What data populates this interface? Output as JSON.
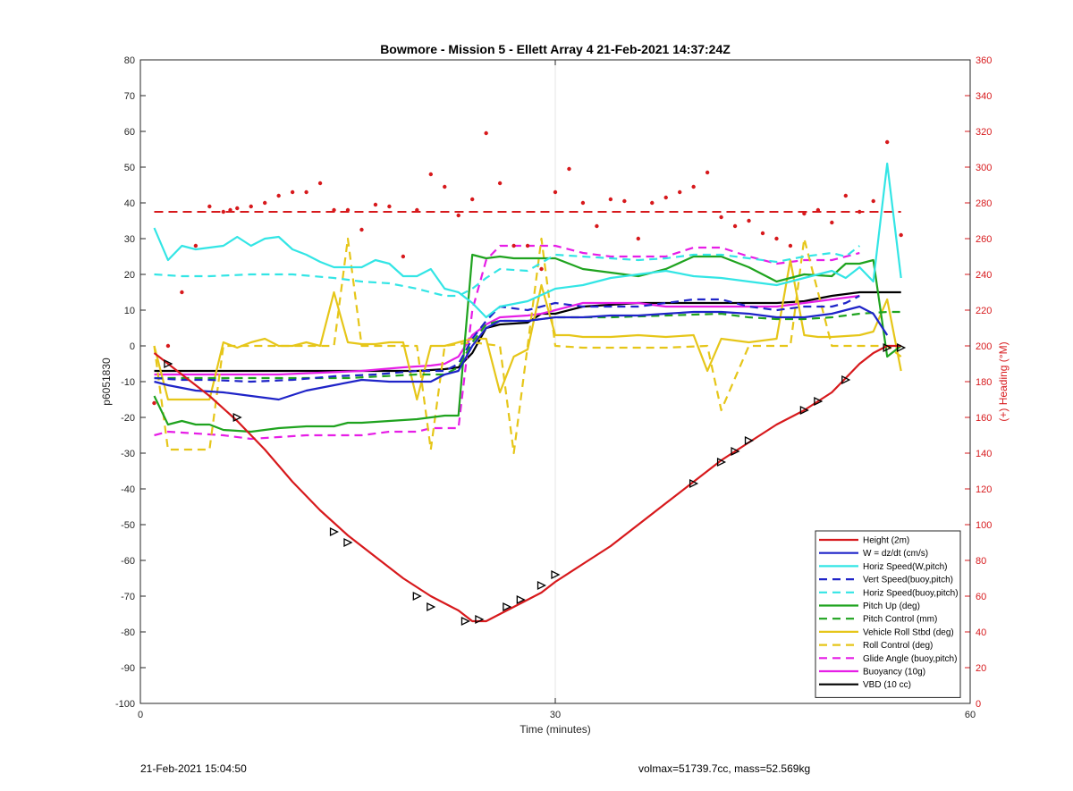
{
  "footer": {
    "timestamp": "21-Feb-2021 15:04:50",
    "stats": "volmax=51739.7cc, mass=52.569kg"
  },
  "chart_data": {
    "type": "line",
    "title": "Bowmore - Mission 5 - Ellett Array 4 21-Feb-2021 14:37:24Z",
    "xlabel": "Time (minutes)",
    "ylabel": "p6051830",
    "y2label": "(+) Heading (°M)",
    "xlim": [
      0,
      60
    ],
    "ylim": [
      -100,
      80
    ],
    "y2lim": [
      0,
      360
    ],
    "xticks": [
      0,
      30,
      60
    ],
    "yticks": [
      -100,
      -90,
      -80,
      -70,
      -60,
      -50,
      -40,
      -30,
      -20,
      -10,
      0,
      10,
      20,
      30,
      40,
      50,
      60,
      70,
      80
    ],
    "y2ticks": [
      0,
      20,
      40,
      60,
      80,
      100,
      120,
      140,
      160,
      180,
      200,
      220,
      240,
      260,
      280,
      300,
      320,
      340,
      360
    ],
    "grid": "x-only",
    "legend_position": "bottom-right",
    "colors": {
      "red": "#d7191c",
      "blue": "#1f24c8",
      "cyan": "#33e5e5",
      "green": "#1fa31f",
      "yellow": "#e6c619",
      "magenta": "#e61ee6",
      "black": "#000000"
    },
    "series": [
      {
        "name": "Height (2m)",
        "color": "red",
        "style": "solid",
        "x": [
          1,
          3,
          5,
          7,
          9,
          11,
          13,
          15,
          17,
          19,
          21,
          23,
          24,
          25,
          26,
          27,
          28,
          29,
          30,
          32,
          34,
          36,
          38,
          40,
          42,
          44,
          46,
          48,
          50,
          51,
          52,
          53,
          54,
          55
        ],
        "y": [
          -2,
          -8,
          -14,
          -21,
          -29,
          -38,
          -46,
          -53,
          -59,
          -65,
          -70,
          -74,
          -77,
          -77,
          -75,
          -73,
          -71,
          -69,
          -66,
          -61,
          -56,
          -50,
          -44,
          -38,
          -32,
          -27,
          -22,
          -18,
          -13,
          -9,
          -5,
          -2,
          0,
          0
        ]
      },
      {
        "name": "W = dz/dt (cm/s)",
        "color": "blue",
        "style": "solid",
        "x": [
          1,
          2,
          4,
          6,
          8,
          10,
          12,
          14,
          16,
          18,
          20,
          21,
          22,
          23,
          24,
          25,
          26,
          28,
          30,
          32,
          34,
          36,
          38,
          40,
          42,
          44,
          46,
          48,
          50,
          51,
          52,
          53,
          54
        ],
        "y": [
          -10,
          -11,
          -12.5,
          -13,
          -14,
          -15,
          -12.5,
          -11,
          -9.5,
          -10,
          -10,
          -10,
          -8,
          -7,
          0,
          5,
          7,
          7,
          8,
          8,
          8.5,
          8.5,
          9,
          9.5,
          9.5,
          9,
          8,
          8,
          9,
          10,
          11,
          9,
          3
        ]
      },
      {
        "name": "Horiz Speed(W,pitch)",
        "color": "cyan",
        "style": "solid",
        "x": [
          1,
          2,
          3,
          4,
          5,
          6,
          7,
          8,
          9,
          10,
          11,
          12,
          13,
          14,
          15,
          16,
          17,
          18,
          19,
          20,
          21,
          22,
          23,
          24,
          25,
          26,
          28,
          30,
          32,
          34,
          36,
          38,
          40,
          42,
          44,
          46,
          48,
          50,
          51,
          52,
          53,
          54,
          55
        ],
        "y": [
          33,
          24,
          28,
          27,
          27.5,
          28,
          30.5,
          28,
          30,
          30.5,
          27,
          25.5,
          23.5,
          22,
          22,
          22,
          24,
          23,
          19.5,
          19.5,
          21.5,
          16,
          15,
          12,
          8,
          11,
          12.5,
          16,
          17,
          19,
          20,
          21,
          19.5,
          19,
          18,
          17,
          19,
          21,
          19,
          22,
          18,
          51,
          19
        ]
      },
      {
        "name": "Vert Speed(buoy,pitch)",
        "color": "blue",
        "style": "dashed",
        "x": [
          1,
          3,
          5,
          8,
          11,
          14,
          17,
          20,
          22,
          23,
          24,
          25,
          26,
          28,
          30,
          32,
          34,
          36,
          38,
          40,
          42,
          44,
          46,
          48,
          50,
          51,
          52
        ],
        "y": [
          -9,
          -9.5,
          -9.5,
          -10,
          -9.5,
          -8.5,
          -8,
          -7,
          -7,
          -5,
          2,
          7,
          11,
          10,
          12,
          11,
          11,
          11,
          12,
          13,
          13,
          11,
          10,
          11,
          11,
          12,
          14
        ]
      },
      {
        "name": "Horiz Speed(buoy,pitch)",
        "color": "cyan",
        "style": "dashed",
        "x": [
          1,
          3,
          5,
          8,
          11,
          14,
          16,
          18,
          20,
          22,
          23,
          24,
          25,
          26,
          28,
          30,
          32,
          34,
          36,
          38,
          40,
          42,
          44,
          46,
          48,
          50,
          51,
          52
        ],
        "y": [
          20,
          19.5,
          19.5,
          20,
          20,
          19,
          18,
          17.5,
          16,
          14,
          14,
          16,
          19,
          21.5,
          21,
          25.5,
          25,
          24.5,
          24,
          24.5,
          25.5,
          25.5,
          24.5,
          23.5,
          25,
          26,
          25,
          28
        ]
      },
      {
        "name": "Pitch Up (deg)",
        "color": "green",
        "style": "solid",
        "x": [
          1,
          2,
          3,
          4,
          5,
          6,
          8,
          10,
          12,
          14,
          15,
          16,
          18,
          20,
          22,
          23,
          24,
          25,
          26,
          27,
          28,
          30,
          31,
          32,
          34,
          36,
          38,
          40,
          42,
          44,
          46,
          48,
          50,
          51,
          52,
          53,
          54,
          55
        ],
        "y": [
          -14,
          -22,
          -21,
          -22,
          -22,
          -23.5,
          -24,
          -23,
          -22.5,
          -22.5,
          -21.5,
          -21.5,
          -21,
          -20.5,
          -19.5,
          -19.5,
          25.5,
          24.5,
          25,
          24.5,
          24.5,
          24.5,
          23,
          21.5,
          20.5,
          19.5,
          21.5,
          25,
          25,
          22,
          18,
          20,
          19.5,
          23,
          23,
          24,
          -3,
          0
        ]
      },
      {
        "name": "Pitch Control (mm)",
        "color": "green",
        "style": "dashed",
        "x": [
          1,
          5,
          10,
          15,
          20,
          22,
          23,
          24,
          25,
          26,
          28,
          30,
          34,
          38,
          42,
          44,
          46,
          48,
          50,
          52,
          54,
          55
        ],
        "y": [
          -9,
          -9,
          -9,
          -9,
          -8,
          -8,
          -6,
          1,
          6,
          7,
          7,
          8,
          8,
          8.5,
          9,
          8,
          7.5,
          7.5,
          8,
          9,
          9.5,
          9.5
        ]
      },
      {
        "name": "Vehicle Roll Stbd (deg)",
        "color": "yellow",
        "style": "solid",
        "x": [
          1,
          2,
          4,
          5,
          6,
          7,
          8,
          9,
          10,
          11,
          12,
          13,
          14,
          15,
          16,
          17,
          18,
          19,
          20,
          21,
          22,
          23,
          24,
          25,
          26,
          27,
          28,
          29,
          30,
          31,
          32,
          34,
          36,
          38,
          40,
          41,
          42,
          44,
          46,
          47,
          48,
          49,
          50,
          52,
          53,
          54,
          55
        ],
        "y": [
          0,
          -15,
          -15,
          -15,
          1,
          -0.5,
          1,
          2,
          0,
          0,
          1,
          0,
          15,
          1,
          0.5,
          0.5,
          1,
          1,
          -15,
          0,
          0,
          1,
          2,
          2,
          -13,
          -3,
          -1,
          17,
          3,
          3,
          2.5,
          2.5,
          3,
          2.5,
          3,
          -7,
          2,
          1,
          2,
          24,
          3,
          2.5,
          2.5,
          3,
          4,
          13,
          -7
        ]
      },
      {
        "name": "Roll Control (deg)",
        "color": "yellow",
        "style": "dashed",
        "x": [
          1,
          2,
          4,
          5,
          6,
          8,
          10,
          12,
          13,
          14,
          15,
          16,
          18,
          20,
          21,
          22,
          24,
          26,
          27,
          28,
          29,
          30,
          32,
          35,
          38,
          41,
          42,
          44,
          46,
          47,
          48,
          50,
          52,
          54,
          55
        ],
        "y": [
          0,
          -29,
          -29,
          -29,
          0,
          0,
          0,
          0,
          0,
          0,
          30,
          0,
          0,
          0,
          -29,
          0,
          1,
          0,
          -30,
          0,
          30,
          0,
          -0.5,
          -0.5,
          -0.5,
          0,
          -18,
          0,
          0,
          0,
          30,
          0,
          0,
          0,
          -3
        ]
      },
      {
        "name": "Glide Angle (buoy,pitch)",
        "color": "magenta",
        "style": "dashed",
        "x": [
          1,
          2,
          4,
          6,
          8,
          10,
          12,
          14,
          16,
          18,
          20,
          21,
          22,
          23,
          24,
          25,
          26,
          28,
          30,
          32,
          34,
          36,
          38,
          40,
          42,
          44,
          46,
          48,
          50,
          52
        ],
        "y": [
          -25,
          -24,
          -24.5,
          -25,
          -26,
          -25.5,
          -25,
          -25,
          -25,
          -24,
          -24,
          -23,
          -23,
          -23,
          10,
          24,
          28,
          28,
          28,
          26,
          25,
          25,
          25,
          27.5,
          27.5,
          25,
          23,
          24,
          24,
          26
        ]
      },
      {
        "name": "Buoyancy (10g)",
        "color": "magenta",
        "style": "solid",
        "x": [
          1,
          4,
          7,
          10,
          13,
          16,
          19,
          21,
          22,
          23,
          24,
          25,
          26,
          28,
          29,
          30,
          32,
          34,
          36,
          38,
          40,
          42,
          44,
          46,
          48,
          50,
          51,
          52
        ],
        "y": [
          -8,
          -8,
          -8,
          -8,
          -7.5,
          -7,
          -6,
          -5.5,
          -5,
          -3,
          3,
          6,
          8,
          8.5,
          9,
          10,
          12,
          12,
          12,
          11,
          11,
          11,
          11,
          11,
          12,
          13,
          13.5,
          14
        ]
      },
      {
        "name": "VBD (10 cc)",
        "color": "black",
        "style": "solid",
        "x": [
          1,
          5,
          10,
          15,
          20,
          22,
          23,
          24,
          25,
          26,
          28,
          29,
          30,
          32,
          34,
          36,
          38,
          40,
          42,
          44,
          46,
          48,
          50,
          52,
          54,
          55
        ],
        "y": [
          -7,
          -7,
          -7,
          -7,
          -7,
          -6.5,
          -6,
          -2,
          5,
          6,
          6.5,
          9,
          9,
          11,
          11.5,
          12,
          12,
          12,
          12,
          12,
          12,
          12.5,
          14,
          15,
          15,
          15
        ]
      }
    ],
    "heading_reference": {
      "color": "red",
      "style": "dashed",
      "y": 37.5,
      "x": [
        1,
        55
      ]
    },
    "heading_points": {
      "color": "red",
      "x": [
        1,
        2,
        3,
        4,
        5,
        6,
        6.5,
        7,
        8,
        9,
        10,
        11,
        12,
        13,
        14,
        15,
        16,
        17,
        18,
        19,
        20,
        21,
        22,
        23,
        24,
        25,
        26,
        27,
        28,
        29,
        30,
        31,
        32,
        33,
        34,
        35,
        36,
        37,
        38,
        39,
        40,
        41,
        42,
        43,
        44,
        45,
        46,
        47,
        48,
        49,
        50,
        51,
        52,
        53,
        54,
        55
      ],
      "y": [
        -16,
        0,
        15,
        28,
        39,
        37.5,
        38,
        38.5,
        39,
        40,
        42,
        43,
        43,
        45.5,
        38,
        38,
        32.5,
        39.5,
        39,
        25,
        38,
        48,
        44.5,
        36.5,
        41,
        59.5,
        45.5,
        28,
        28,
        21.5,
        43,
        49.5,
        40,
        33.5,
        41,
        40.5,
        30,
        40,
        41.5,
        43,
        44.5,
        48.5,
        36,
        33.5,
        35,
        31.5,
        30,
        28,
        37,
        38,
        34.5,
        42,
        37.5,
        40.5,
        57,
        31
      ]
    },
    "depth_markers": {
      "color": "black",
      "x": [
        2,
        7,
        14,
        15,
        20,
        21,
        23.5,
        24.5,
        26.5,
        27.5,
        29,
        30,
        40,
        42,
        43,
        44,
        48,
        49,
        51,
        54,
        55
      ],
      "y": [
        -5,
        -20,
        -52,
        -55,
        -70,
        -73,
        -77,
        -76.5,
        -73,
        -71,
        -67,
        -64,
        -38.5,
        -32.5,
        -29.5,
        -26.5,
        -18,
        -15.5,
        -9.5,
        -0.5,
        -0.5
      ]
    }
  }
}
